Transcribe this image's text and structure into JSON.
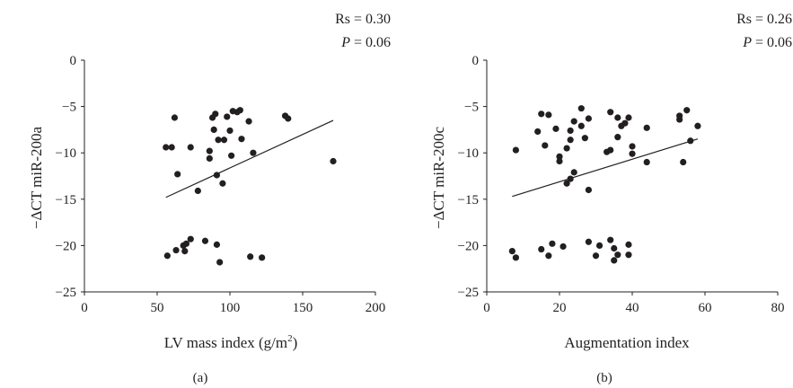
{
  "colors": {
    "ink": "#231f20",
    "background": "#ffffff"
  },
  "chart_data": [
    {
      "type": "scatter",
      "panel_label": "(a)",
      "xlabel": "LV mass index (g/m",
      "xlabel_sup": "2",
      "xlabel_close": ")",
      "ylabel": "−ΔCT miR-200a",
      "xlim": [
        0,
        200
      ],
      "ylim": [
        -25,
        0
      ],
      "xticks": [
        0,
        50,
        100,
        150,
        200
      ],
      "yticks": [
        0,
        -5,
        -10,
        -15,
        -20,
        -25
      ],
      "grid": false,
      "stats": {
        "rs": "Rs = 0.30",
        "p_label": "P",
        "p_rest": " = 0.06"
      },
      "trendline": {
        "x": [
          56,
          171
        ],
        "y": [
          -14.8,
          -6.5
        ]
      },
      "points": [
        [
          56,
          -9.4
        ],
        [
          60,
          -9.4
        ],
        [
          62,
          -6.2
        ],
        [
          64,
          -12.3
        ],
        [
          57,
          -21.1
        ],
        [
          63,
          -20.5
        ],
        [
          68,
          -20.0
        ],
        [
          69,
          -20.6
        ],
        [
          70,
          -19.8
        ],
        [
          73,
          -19.3
        ],
        [
          73,
          -9.4
        ],
        [
          78,
          -14.1
        ],
        [
          83,
          -19.5
        ],
        [
          86,
          -9.8
        ],
        [
          86,
          -10.6
        ],
        [
          88,
          -6.2
        ],
        [
          89,
          -7.5
        ],
        [
          90,
          -5.8
        ],
        [
          91,
          -19.9
        ],
        [
          91,
          -12.4
        ],
        [
          92,
          -8.6
        ],
        [
          93,
          -21.8
        ],
        [
          95,
          -13.3
        ],
        [
          96,
          -8.6
        ],
        [
          98,
          -6.1
        ],
        [
          100,
          -7.6
        ],
        [
          101,
          -10.3
        ],
        [
          102,
          -5.5
        ],
        [
          105,
          -5.6
        ],
        [
          107,
          -5.4
        ],
        [
          108,
          -8.5
        ],
        [
          113,
          -6.6
        ],
        [
          114,
          -21.2
        ],
        [
          116,
          -10.0
        ],
        [
          122,
          -21.3
        ],
        [
          138,
          -6.0
        ],
        [
          140,
          -6.3
        ],
        [
          171,
          -10.9
        ]
      ]
    },
    {
      "type": "scatter",
      "panel_label": "(b)",
      "xlabel": "Augmentation index",
      "ylabel": "−ΔCT miR-200c",
      "xlim": [
        0,
        80
      ],
      "ylim": [
        -25,
        0
      ],
      "xticks": [
        0,
        20,
        40,
        60,
        80
      ],
      "yticks": [
        0,
        -5,
        -10,
        -15,
        -20,
        -25
      ],
      "grid": false,
      "stats": {
        "rs": "Rs = 0.26",
        "p_label": "P",
        "p_rest": " = 0.06"
      },
      "trendline": {
        "x": [
          7,
          58
        ],
        "y": [
          -14.7,
          -8.5
        ]
      },
      "points": [
        [
          7,
          -20.6
        ],
        [
          8,
          -9.7
        ],
        [
          8,
          -21.3
        ],
        [
          14,
          -7.7
        ],
        [
          15,
          -5.8
        ],
        [
          15,
          -20.4
        ],
        [
          16,
          -9.2
        ],
        [
          17,
          -5.9
        ],
        [
          17,
          -21.1
        ],
        [
          18,
          -19.8
        ],
        [
          19,
          -7.4
        ],
        [
          20,
          -10.4
        ],
        [
          20,
          -10.9
        ],
        [
          21,
          -20.1
        ],
        [
          22,
          -13.3
        ],
        [
          22,
          -9.5
        ],
        [
          23,
          -7.6
        ],
        [
          23,
          -8.6
        ],
        [
          23,
          -12.8
        ],
        [
          24,
          -6.6
        ],
        [
          24,
          -12.1
        ],
        [
          26,
          -5.2
        ],
        [
          26,
          -7.1
        ],
        [
          27,
          -8.4
        ],
        [
          28,
          -6.3
        ],
        [
          28,
          -14.0
        ],
        [
          28,
          -19.6
        ],
        [
          30,
          -21.1
        ],
        [
          31,
          -20.0
        ],
        [
          33,
          -9.9
        ],
        [
          34,
          -5.6
        ],
        [
          34,
          -9.7
        ],
        [
          34,
          -19.4
        ],
        [
          35,
          -20.3
        ],
        [
          35,
          -21.6
        ],
        [
          36,
          -6.2
        ],
        [
          36,
          -8.3
        ],
        [
          36,
          -21.0
        ],
        [
          37,
          -7.1
        ],
        [
          38,
          -6.8
        ],
        [
          39,
          -6.2
        ],
        [
          39,
          -19.9
        ],
        [
          39,
          -21.0
        ],
        [
          40,
          -9.3
        ],
        [
          40,
          -10.1
        ],
        [
          44,
          -7.3
        ],
        [
          44,
          -11.0
        ],
        [
          53,
          -6.4
        ],
        [
          53,
          -6.0
        ],
        [
          54,
          -11.0
        ],
        [
          55,
          -5.4
        ],
        [
          56,
          -8.7
        ],
        [
          58,
          -7.1
        ]
      ]
    }
  ]
}
